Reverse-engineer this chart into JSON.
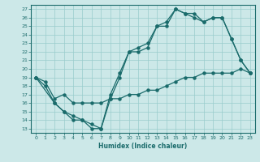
{
  "xlabel": "Humidex (Indice chaleur)",
  "bg_color": "#cce8e8",
  "grid_color": "#99cccc",
  "line_color": "#1a6b6b",
  "xlim": [
    -0.5,
    23.5
  ],
  "ylim": [
    12.5,
    27.5
  ],
  "xticks": [
    0,
    1,
    2,
    3,
    4,
    5,
    6,
    7,
    8,
    9,
    10,
    11,
    12,
    13,
    14,
    15,
    16,
    17,
    18,
    19,
    20,
    21,
    22,
    23
  ],
  "yticks": [
    13,
    14,
    15,
    16,
    17,
    18,
    19,
    20,
    21,
    22,
    23,
    24,
    25,
    26,
    27
  ],
  "line1": {
    "x": [
      0,
      1,
      2,
      3,
      4,
      5,
      6,
      7,
      8,
      9,
      10,
      11,
      12,
      13,
      14,
      15,
      16,
      17,
      18,
      19,
      20,
      21,
      22,
      23
    ],
    "y": [
      19,
      18,
      16,
      15,
      14,
      14,
      13,
      13,
      17,
      19.5,
      22,
      22.5,
      23,
      25,
      25,
      27,
      26.5,
      26.5,
      25.5,
      26,
      26,
      23.5,
      21,
      19.5
    ]
  },
  "line2": {
    "x": [
      0,
      2,
      3,
      4,
      5,
      6,
      7,
      8,
      9,
      10,
      11,
      12,
      13,
      14,
      15,
      16,
      17,
      18,
      19,
      20,
      21,
      22,
      23
    ],
    "y": [
      19,
      16,
      15,
      14.5,
      14,
      13.5,
      13,
      16.5,
      19,
      22,
      22,
      22.5,
      25,
      25.5,
      27,
      26.5,
      26,
      25.5,
      26,
      26,
      23.5,
      21,
      19.5
    ]
  },
  "line3": {
    "x": [
      0,
      1,
      2,
      3,
      4,
      5,
      6,
      7,
      8,
      9,
      10,
      11,
      12,
      13,
      14,
      15,
      16,
      17,
      18,
      19,
      20,
      21,
      22,
      23
    ],
    "y": [
      19,
      18.5,
      16.5,
      17,
      16,
      16,
      16,
      16,
      16.5,
      16.5,
      17,
      17,
      17.5,
      17.5,
      18,
      18.5,
      19,
      19,
      19.5,
      19.5,
      19.5,
      19.5,
      20,
      19.5
    ]
  }
}
